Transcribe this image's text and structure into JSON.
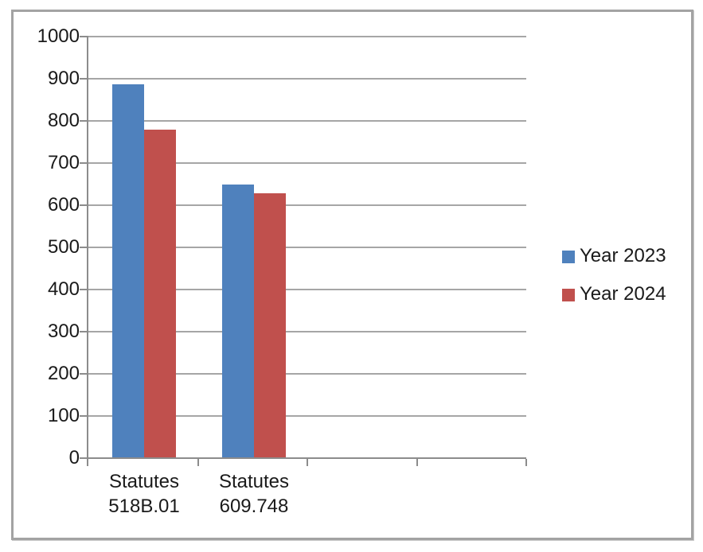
{
  "chart_data": {
    "type": "bar",
    "title": "",
    "categories": [
      "Statutes 518B.01",
      "Statutes 609.748"
    ],
    "category_label_lines": [
      [
        "Statutes",
        "518B.01"
      ],
      [
        "Statutes",
        "609.748"
      ]
    ],
    "num_category_slots": 4,
    "series": [
      {
        "name": "Year 2023",
        "color": "#4f81bd",
        "values": [
          885,
          648
        ]
      },
      {
        "name": "Year 2024",
        "color": "#c0504d",
        "values": [
          778,
          627
        ]
      }
    ],
    "xlabel": "",
    "ylabel": "",
    "ylim": [
      0,
      1000
    ],
    "ytick_step": 100,
    "ytick_labels": [
      "0",
      "100",
      "200",
      "300",
      "400",
      "500",
      "600",
      "700",
      "800",
      "900",
      "1000"
    ],
    "grid": "horizontal",
    "legend_position": "right"
  },
  "colors": {
    "gridline": "#a6a6a6",
    "axis": "#8c8c8c",
    "frame_border": "#a3a3a3",
    "text": "#1a1a1a",
    "background": "#ffffff"
  }
}
